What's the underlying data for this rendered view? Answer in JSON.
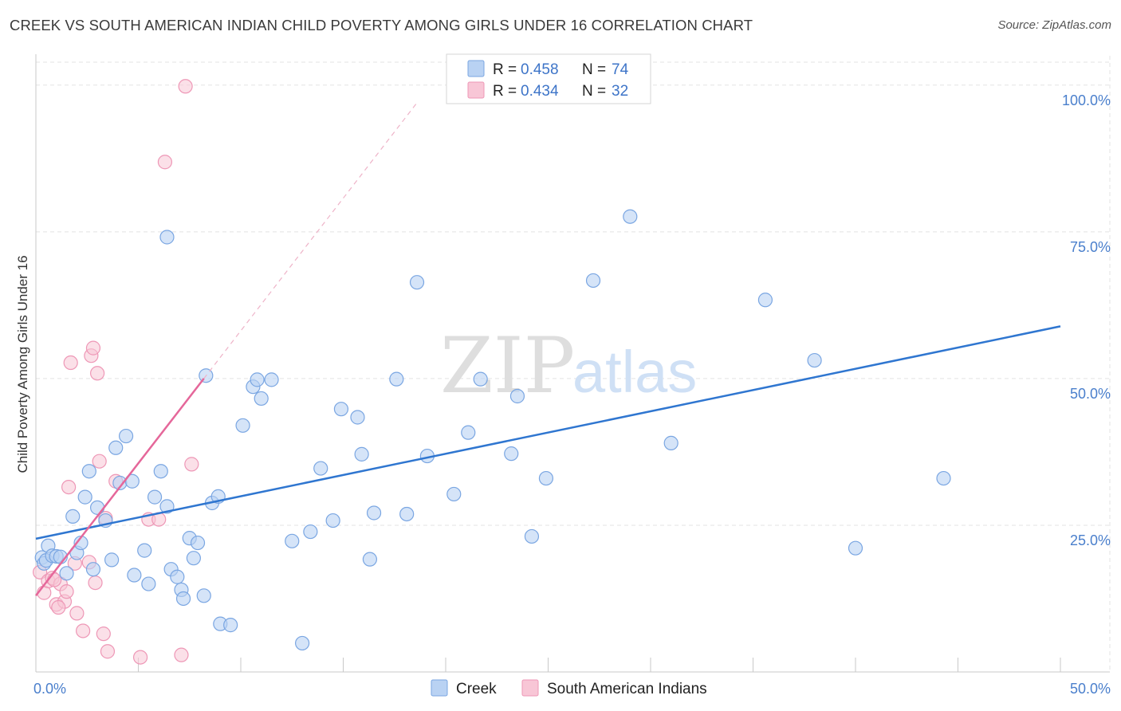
{
  "title": "CREEK VS SOUTH AMERICAN INDIAN CHILD POVERTY AMONG GIRLS UNDER 16 CORRELATION CHART",
  "source": "Source: ZipAtlas.com",
  "watermark": {
    "zip": "ZIP",
    "atlas": "atlas"
  },
  "colors": {
    "creek_fill": "#b9d2f3",
    "creek_stroke": "#7aa6e2",
    "creek_line": "#2f76d0",
    "sai_fill": "#f8c6d6",
    "sai_stroke": "#ee97b6",
    "sai_line": "#e5679a",
    "grid": "#e3e3e3",
    "tick_label": "#4a7fcc"
  },
  "legend": {
    "rows": [
      {
        "r_label": "R =",
        "r_value": "0.458",
        "n_label": "N =",
        "n_value": "74"
      },
      {
        "r_label": "R =",
        "r_value": "0.434",
        "n_label": "N =",
        "n_value": "32"
      }
    ]
  },
  "chart_data": {
    "type": "scatter",
    "title": "CREEK VS SOUTH AMERICAN INDIAN CHILD POVERTY AMONG GIRLS UNDER 16 CORRELATION CHART",
    "xlabel": "",
    "ylabel": "Child Poverty Among Girls Under 16",
    "xlim": [
      0,
      50
    ],
    "ylim": [
      0,
      105
    ],
    "x_tick_labels": [
      {
        "value": 0,
        "label": "0.0%"
      },
      {
        "value": 50,
        "label": "50.0%"
      }
    ],
    "y_tick_labels": [
      {
        "value": 25,
        "label": "25.0%"
      },
      {
        "value": 50,
        "label": "50.0%"
      },
      {
        "value": 75,
        "label": "75.0%"
      },
      {
        "value": 100,
        "label": "100.0%"
      }
    ],
    "grid": true,
    "legend_position": "top-center",
    "series": [
      {
        "name": "Creek",
        "r": 0.458,
        "n": 74,
        "trend": {
          "x": [
            0,
            50
          ],
          "y": [
            22.7,
            58.9
          ]
        },
        "points": [
          [
            0.3,
            19.5
          ],
          [
            0.4,
            18.5
          ],
          [
            0.5,
            19.0
          ],
          [
            0.6,
            21.5
          ],
          [
            0.8,
            19.8
          ],
          [
            1.0,
            19.7
          ],
          [
            1.2,
            19.6
          ],
          [
            1.5,
            16.8
          ],
          [
            1.8,
            26.5
          ],
          [
            2.0,
            20.3
          ],
          [
            2.2,
            22.0
          ],
          [
            2.4,
            29.8
          ],
          [
            2.6,
            34.2
          ],
          [
            2.8,
            17.5
          ],
          [
            3.0,
            28.0
          ],
          [
            3.4,
            25.8
          ],
          [
            3.7,
            19.1
          ],
          [
            3.9,
            38.2
          ],
          [
            4.1,
            32.2
          ],
          [
            4.4,
            40.2
          ],
          [
            4.7,
            32.5
          ],
          [
            4.8,
            16.5
          ],
          [
            5.3,
            20.7
          ],
          [
            5.5,
            15.0
          ],
          [
            5.8,
            29.8
          ],
          [
            6.1,
            34.2
          ],
          [
            6.4,
            28.2
          ],
          [
            6.6,
            17.5
          ],
          [
            6.9,
            16.2
          ],
          [
            7.1,
            14.0
          ],
          [
            7.2,
            12.5
          ],
          [
            7.5,
            22.8
          ],
          [
            7.7,
            19.4
          ],
          [
            7.9,
            22.0
          ],
          [
            8.2,
            13.0
          ],
          [
            8.6,
            28.8
          ],
          [
            8.9,
            29.9
          ],
          [
            9.0,
            8.2
          ],
          [
            9.5,
            8.0
          ],
          [
            10.1,
            42.0
          ],
          [
            10.6,
            48.6
          ],
          [
            10.8,
            49.8
          ],
          [
            11.0,
            46.6
          ],
          [
            11.5,
            49.8
          ],
          [
            12.5,
            22.3
          ],
          [
            13.0,
            4.9
          ],
          [
            13.4,
            23.9
          ],
          [
            13.9,
            34.7
          ],
          [
            14.5,
            25.8
          ],
          [
            14.9,
            44.8
          ],
          [
            15.7,
            43.4
          ],
          [
            15.9,
            37.1
          ],
          [
            16.3,
            19.2
          ],
          [
            16.5,
            27.1
          ],
          [
            17.6,
            49.9
          ],
          [
            18.1,
            26.9
          ],
          [
            19.1,
            36.8
          ],
          [
            20.4,
            30.3
          ],
          [
            21.1,
            40.8
          ],
          [
            21.7,
            49.9
          ],
          [
            23.2,
            37.2
          ],
          [
            23.5,
            47.0
          ],
          [
            24.2,
            23.1
          ],
          [
            24.9,
            33.0
          ],
          [
            27.2,
            66.7
          ],
          [
            29.0,
            77.6
          ],
          [
            31.0,
            39.0
          ],
          [
            35.6,
            63.4
          ],
          [
            38.0,
            53.1
          ],
          [
            40.0,
            21.1
          ],
          [
            44.3,
            33.0
          ],
          [
            6.4,
            74.1
          ],
          [
            18.6,
            66.4
          ],
          [
            8.3,
            50.5
          ]
        ]
      },
      {
        "name": "South American Indians",
        "r": 0.434,
        "n": 32,
        "trend": {
          "x": [
            0,
            8.2
          ],
          "y": [
            13.0,
            50.0
          ]
        },
        "trend_extension": {
          "x": [
            8.2,
            18.6
          ],
          "y": [
            50.0,
            97.0
          ]
        },
        "points": [
          [
            0.2,
            17.0
          ],
          [
            0.4,
            13.5
          ],
          [
            0.6,
            15.5
          ],
          [
            0.8,
            16.0
          ],
          [
            1.0,
            11.5
          ],
          [
            1.2,
            15.0
          ],
          [
            1.4,
            12.0
          ],
          [
            1.5,
            13.7
          ],
          [
            1.6,
            31.5
          ],
          [
            1.7,
            52.7
          ],
          [
            1.9,
            18.5
          ],
          [
            2.0,
            10.0
          ],
          [
            2.3,
            7.0
          ],
          [
            2.6,
            18.7
          ],
          [
            2.7,
            53.9
          ],
          [
            2.8,
            55.2
          ],
          [
            2.9,
            15.2
          ],
          [
            3.0,
            50.9
          ],
          [
            3.1,
            35.9
          ],
          [
            3.3,
            6.5
          ],
          [
            3.4,
            26.2
          ],
          [
            3.9,
            32.5
          ],
          [
            3.5,
            3.5
          ],
          [
            5.1,
            2.5
          ],
          [
            5.5,
            26.0
          ],
          [
            6.0,
            26.0
          ],
          [
            6.3,
            86.9
          ],
          [
            7.1,
            2.9
          ],
          [
            7.3,
            99.8
          ],
          [
            7.6,
            35.4
          ],
          [
            1.1,
            11.0
          ],
          [
            0.9,
            15.7
          ]
        ]
      }
    ]
  },
  "bottom_legend": [
    "Creek",
    "South American Indians"
  ]
}
